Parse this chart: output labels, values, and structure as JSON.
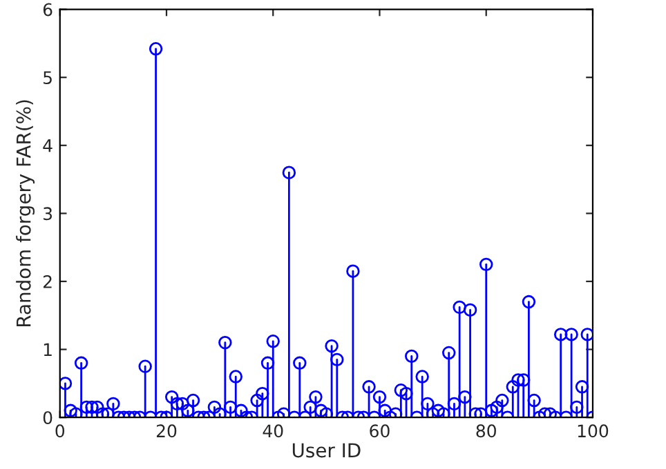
{
  "chart_data": {
    "type": "lollipop",
    "xlabel": "User ID",
    "ylabel": "Random forgery FAR(%)",
    "x": [
      1,
      2,
      3,
      4,
      5,
      6,
      7,
      8,
      9,
      10,
      11,
      12,
      13,
      14,
      15,
      16,
      17,
      18,
      19,
      20,
      21,
      22,
      23,
      24,
      25,
      26,
      27,
      28,
      29,
      30,
      31,
      32,
      33,
      34,
      35,
      36,
      37,
      38,
      39,
      40,
      41,
      42,
      43,
      44,
      45,
      46,
      47,
      48,
      49,
      50,
      51,
      52,
      53,
      54,
      55,
      56,
      57,
      58,
      59,
      60,
      61,
      62,
      63,
      64,
      65,
      66,
      67,
      68,
      69,
      70,
      71,
      72,
      73,
      74,
      75,
      76,
      77,
      78,
      79,
      80,
      81,
      82,
      83,
      84,
      85,
      86,
      87,
      88,
      89,
      90,
      91,
      92,
      93,
      94,
      95,
      96,
      97,
      98,
      99,
      100
    ],
    "series": [
      {
        "color": "#0000ff",
        "values": [
          0.5,
          0.1,
          0.05,
          0.8,
          0.15,
          0.15,
          0.15,
          0.05,
          0.05,
          0.2,
          0,
          0,
          0,
          0,
          0,
          0.75,
          0,
          5.42,
          0,
          0,
          0.3,
          0.2,
          0.2,
          0.1,
          0.25,
          0,
          0,
          0,
          0.15,
          0.05,
          1.1,
          0.15,
          0.6,
          0.1,
          0,
          0,
          0.25,
          0.35,
          0.8,
          1.12,
          0,
          0.05,
          3.6,
          0,
          0.8,
          0,
          0.15,
          0.3,
          0.1,
          0.05,
          1.05,
          0.85,
          0,
          0,
          2.15,
          0,
          0,
          0.45,
          0,
          0.3,
          0.1,
          0,
          0.05,
          0.4,
          0.35,
          0.9,
          0,
          0.6,
          0.2,
          0.05,
          0.1,
          0.05,
          0.95,
          0.2,
          1.62,
          0.3,
          1.58,
          0.05,
          0.05,
          2.25,
          0.1,
          0.15,
          0.25,
          0,
          0.45,
          0.55,
          0.55,
          1.7,
          0.25,
          0,
          0.05,
          0.05,
          0,
          1.22,
          0,
          1.22,
          0.15,
          0.45,
          1.22,
          0
        ]
      }
    ],
    "xlim": [
      0,
      100
    ],
    "xticks": [
      0,
      20,
      40,
      60,
      80,
      100
    ],
    "ylim": [
      0,
      6
    ],
    "yticks": [
      0,
      1,
      2,
      3,
      4,
      5,
      6
    ],
    "marker": "circle",
    "grid": false
  }
}
